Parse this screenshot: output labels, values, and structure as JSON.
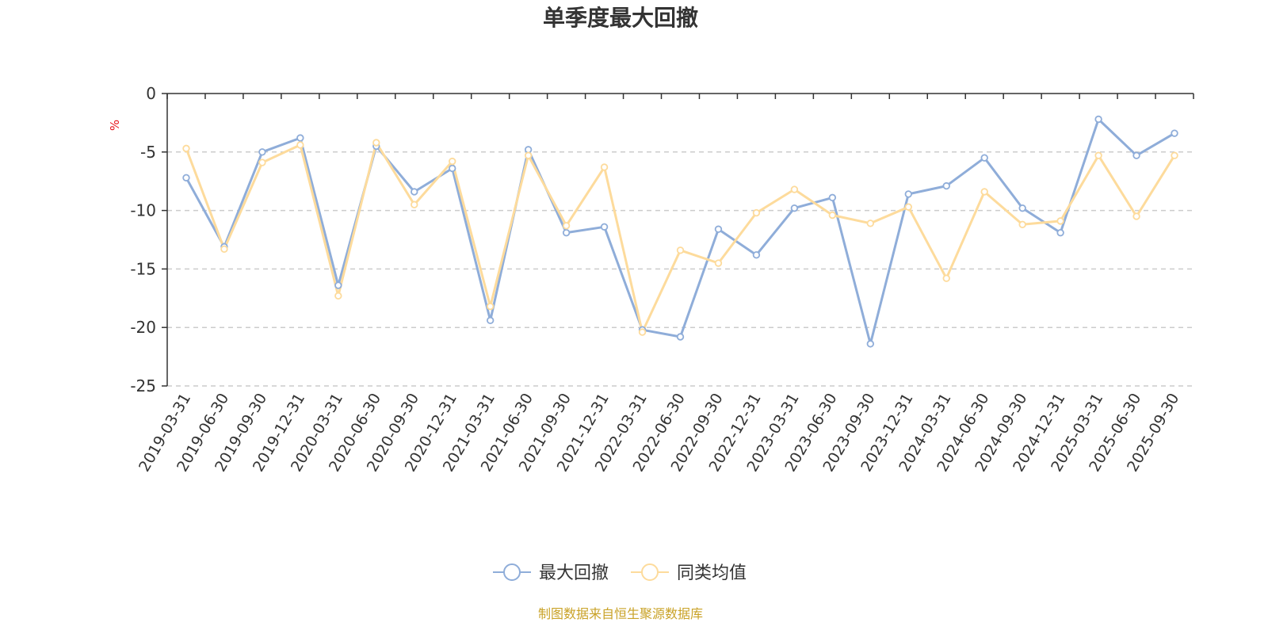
{
  "chart_data": {
    "type": "line",
    "title": "单季度最大回撤",
    "ylabel": "%",
    "ylim": [
      -25,
      0
    ],
    "yticks": [
      0,
      -5,
      -10,
      -15,
      -20,
      -25
    ],
    "grid": true,
    "legend_position": "bottom-center",
    "categories": [
      "2019-03-31",
      "2019-06-30",
      "2019-09-30",
      "2019-12-31",
      "2020-03-31",
      "2020-06-30",
      "2020-09-30",
      "2020-12-31",
      "2021-03-31",
      "2021-06-30",
      "2021-09-30",
      "2021-12-31",
      "2022-03-31",
      "2022-06-30",
      "2022-09-30",
      "2022-12-31",
      "2023-03-31",
      "2023-06-30",
      "2023-09-30",
      "2023-12-31",
      "2024-03-31",
      "2024-06-30",
      "2024-09-30",
      "2024-12-31",
      "2025-03-31",
      "2025-06-30",
      "2025-09-30"
    ],
    "series": [
      {
        "name": "最大回撤",
        "color": "#8fadd9",
        "values": [
          -7.2,
          -13.1,
          -5.0,
          -3.8,
          -16.4,
          -4.5,
          -8.4,
          -6.4,
          -19.4,
          -4.8,
          -11.9,
          -11.4,
          -20.2,
          -20.8,
          -11.6,
          -13.8,
          -9.8,
          -8.9,
          -21.4,
          -8.6,
          -7.9,
          -5.5,
          -9.8,
          -11.9,
          -2.2,
          -5.3,
          -3.4
        ]
      },
      {
        "name": "同类均值",
        "color": "#fddb9c",
        "values": [
          -4.7,
          -13.3,
          -5.9,
          -4.4,
          -17.3,
          -4.2,
          -9.5,
          -5.8,
          -18.2,
          -5.3,
          -11.3,
          -6.3,
          -20.4,
          -13.4,
          -14.5,
          -10.2,
          -8.2,
          -10.4,
          -11.1,
          -9.7,
          -15.8,
          -8.4,
          -11.2,
          -10.9,
          -5.3,
          -10.5,
          -5.3
        ]
      }
    ],
    "source": "制图数据来自恒生聚源数据库"
  }
}
